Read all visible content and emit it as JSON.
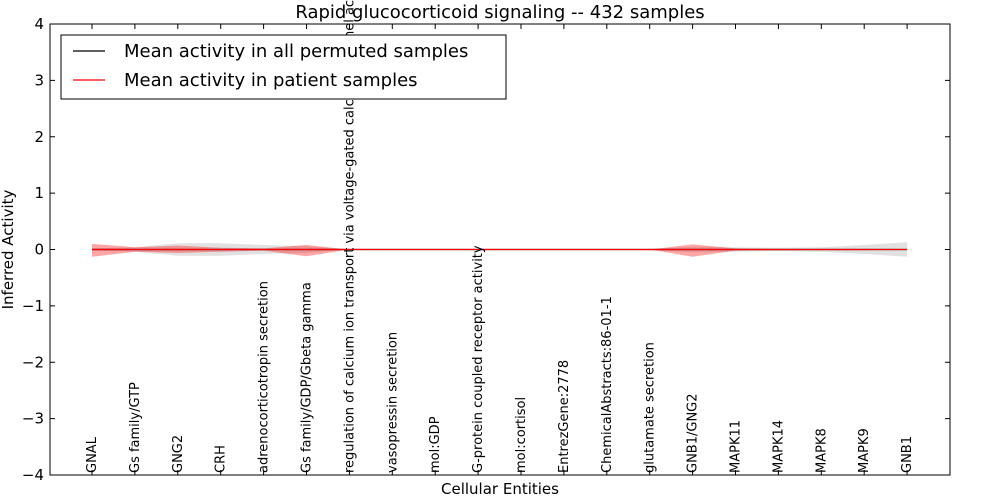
{
  "chart_data": {
    "type": "line",
    "title": "Rapid glucocorticoid signaling -- 432 samples",
    "xlabel": "Cellular Entities",
    "ylabel": "Inferred Activity",
    "ylim": [
      -4,
      4
    ],
    "yticks": [
      -4,
      -3,
      -2,
      -1,
      0,
      1,
      2,
      3,
      4
    ],
    "ytick_labels": [
      "−4",
      "−3",
      "−2",
      "−1",
      "0",
      "1",
      "2",
      "3",
      "4"
    ],
    "legend_position": "upper-left",
    "categories": [
      "GNAL",
      "Gs family/GTP",
      "GNG2",
      "CRH",
      "adrenocorticotropin secretion",
      "Gs family/GDP/Gbeta gamma",
      "regulation of calcium ion transport via voltage-gated calcium channel activity",
      "vasopressin secretion",
      "mol:GDP",
      "G-protein coupled receptor activity",
      "mol:cortisol",
      "EntrezGene:2778",
      "ChemicalAbstracts:86-01-1",
      "glutamate secretion",
      "GNB1/GNG2",
      "MAPK11",
      "MAPK14",
      "MAPK8",
      "MAPK9",
      "GNB1"
    ],
    "series": [
      {
        "name": "Mean activity in all permuted samples",
        "color": "#000000",
        "values": [
          0,
          0,
          0,
          0,
          0,
          0,
          0,
          0,
          0,
          0,
          0,
          0,
          0,
          0,
          0,
          0,
          0,
          0,
          0,
          0
        ],
        "band_lower": [
          -0.02,
          -0.04,
          -0.11,
          -0.11,
          -0.08,
          -0.06,
          0,
          0,
          0,
          0,
          0,
          0,
          0,
          -0.01,
          -0.05,
          -0.04,
          -0.03,
          -0.04,
          -0.08,
          -0.13
        ],
        "band_upper": [
          0.02,
          0.04,
          0.11,
          0.11,
          0.08,
          0.06,
          0,
          0,
          0,
          0,
          0,
          0,
          0,
          0.01,
          0.05,
          0.04,
          0.03,
          0.04,
          0.08,
          0.13
        ],
        "band_color": "#888888"
      },
      {
        "name": "Mean activity in patient samples",
        "color": "#ff0000",
        "values": [
          0,
          0,
          0,
          0,
          0,
          0,
          0,
          0,
          0,
          0,
          0,
          0,
          0,
          0,
          0,
          0,
          0,
          0,
          0,
          0
        ],
        "band_lower": [
          -0.13,
          -0.04,
          -0.06,
          -0.04,
          -0.02,
          -0.12,
          0,
          0,
          0,
          0,
          0,
          0,
          0,
          0,
          -0.13,
          -0.02,
          -0.01,
          -0.01,
          -0.01,
          0
        ],
        "band_upper": [
          0.1,
          0.04,
          0.07,
          0.03,
          0.02,
          0.08,
          0,
          0,
          0,
          0,
          0,
          0,
          0,
          0,
          0.09,
          0.02,
          0.01,
          0.01,
          0.01,
          0
        ],
        "band_color": "#ff0000"
      }
    ]
  }
}
